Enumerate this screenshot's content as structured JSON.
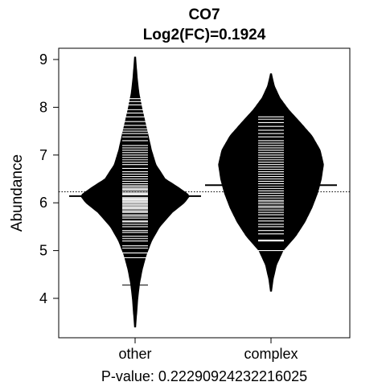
{
  "chart_data": {
    "type": "beanplot",
    "title": "CO7",
    "subtitle": "Log2(FC)=0.1924",
    "xlabel": "",
    "ylabel": "Abundance",
    "ylim": [
      3.2,
      9.3
    ],
    "yticks": [
      4,
      5,
      6,
      7,
      8,
      9
    ],
    "overall_mean": 6.23,
    "categories": [
      "other",
      "complex"
    ],
    "series": [
      {
        "name": "other",
        "mean": 6.14,
        "min": 3.4,
        "max": 9.05,
        "density": [
          [
            3.4,
            0.01
          ],
          [
            3.7,
            0.03
          ],
          [
            4.0,
            0.05
          ],
          [
            4.3,
            0.08
          ],
          [
            4.6,
            0.13
          ],
          [
            4.9,
            0.2
          ],
          [
            5.2,
            0.3
          ],
          [
            5.5,
            0.45
          ],
          [
            5.8,
            0.68
          ],
          [
            6.0,
            0.9
          ],
          [
            6.15,
            1.0
          ],
          [
            6.3,
            0.82
          ],
          [
            6.5,
            0.55
          ],
          [
            6.8,
            0.38
          ],
          [
            7.1,
            0.3
          ],
          [
            7.4,
            0.24
          ],
          [
            7.7,
            0.18
          ],
          [
            8.0,
            0.12
          ],
          [
            8.3,
            0.07
          ],
          [
            8.6,
            0.04
          ],
          [
            8.9,
            0.02
          ],
          [
            9.05,
            0.01
          ]
        ],
        "observations": [
          4.28,
          4.85,
          4.95,
          5.05,
          5.1,
          5.2,
          5.25,
          5.3,
          5.38,
          5.42,
          5.5,
          5.55,
          5.6,
          5.62,
          5.68,
          5.72,
          5.75,
          5.8,
          5.82,
          5.85,
          5.88,
          5.9,
          5.92,
          5.95,
          5.97,
          6.0,
          6.02,
          6.04,
          6.06,
          6.08,
          6.1,
          6.12,
          6.14,
          6.16,
          6.18,
          6.2,
          6.22,
          6.25,
          6.28,
          6.3,
          6.33,
          6.36,
          6.4,
          6.45,
          6.5,
          6.55,
          6.6,
          6.65,
          6.72,
          6.8,
          6.85,
          6.9,
          6.95,
          7.0,
          7.05,
          7.1,
          7.15,
          7.2,
          7.3,
          7.38,
          7.45,
          7.5,
          7.55,
          7.62,
          7.7,
          7.8,
          7.88,
          7.95,
          8.05,
          8.12,
          8.18
        ]
      },
      {
        "name": "complex",
        "mean": 6.37,
        "min": 4.15,
        "max": 8.7,
        "density": [
          [
            4.15,
            0.01
          ],
          [
            4.4,
            0.04
          ],
          [
            4.7,
            0.1
          ],
          [
            5.0,
            0.22
          ],
          [
            5.3,
            0.45
          ],
          [
            5.6,
            0.62
          ],
          [
            5.9,
            0.75
          ],
          [
            6.2,
            0.85
          ],
          [
            6.5,
            0.92
          ],
          [
            6.8,
            0.96
          ],
          [
            7.1,
            0.9
          ],
          [
            7.4,
            0.75
          ],
          [
            7.7,
            0.52
          ],
          [
            7.95,
            0.32
          ],
          [
            8.2,
            0.16
          ],
          [
            8.45,
            0.06
          ],
          [
            8.7,
            0.01
          ]
        ],
        "observations": [
          5.0,
          5.2,
          5.22,
          5.35,
          5.42,
          5.5,
          5.55,
          5.62,
          5.68,
          5.75,
          5.8,
          5.85,
          5.9,
          5.93,
          5.98,
          6.02,
          6.05,
          6.1,
          6.15,
          6.2,
          6.25,
          6.3,
          6.35,
          6.4,
          6.45,
          6.5,
          6.55,
          6.6,
          6.65,
          6.7,
          6.75,
          6.8,
          6.85,
          6.9,
          6.95,
          7.0,
          7.05,
          7.1,
          7.15,
          7.2,
          7.25,
          7.3,
          7.38,
          7.45,
          7.52,
          7.6,
          7.68,
          7.75,
          7.8
        ]
      }
    ]
  },
  "pvalue_text": "P-value: 0.22290924232216025"
}
